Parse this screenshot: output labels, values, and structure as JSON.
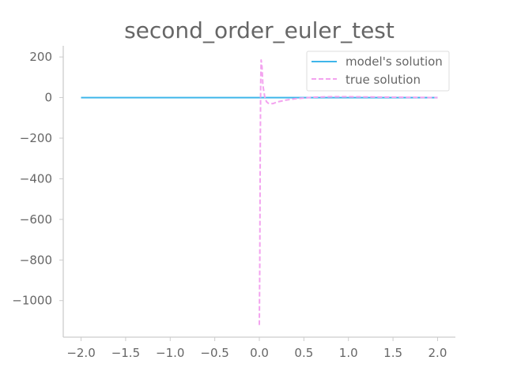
{
  "chart_data": {
    "type": "line",
    "title": "second_order_euler_test",
    "xlabel": "",
    "ylabel": "",
    "xlim": [
      -2.2,
      2.2
    ],
    "ylim": [
      -1180,
      255
    ],
    "x_ticks": [
      -2.0,
      -1.5,
      -1.0,
      -0.5,
      0.0,
      0.5,
      1.0,
      1.5,
      2.0
    ],
    "x_tick_labels": [
      "−2.0",
      "−1.5",
      "−1.0",
      "−0.5",
      "0.0",
      "0.5",
      "1.0",
      "1.5",
      "2.0"
    ],
    "y_ticks": [
      200,
      0,
      -200,
      -400,
      -600,
      -800,
      -1000
    ],
    "y_tick_labels": [
      "200",
      "0",
      "−200",
      "−400",
      "−600",
      "−800",
      "−1000"
    ],
    "grid": false,
    "legend_position": "top-right",
    "series": [
      {
        "name": "model's solution",
        "color": "#3fb6ea",
        "style": "solid",
        "x": [
          -2.0,
          -1.5,
          -1.0,
          -0.5,
          0.0,
          0.5,
          1.0,
          1.5,
          2.0
        ],
        "y": [
          0,
          0,
          0,
          0,
          0,
          0,
          0,
          0,
          0
        ]
      },
      {
        "name": "true solution",
        "color": "#f3a3ef",
        "style": "dashed",
        "x": [
          0.0,
          0.005,
          0.01,
          0.015,
          0.02,
          0.03,
          0.04,
          0.06,
          0.08,
          0.1,
          0.15,
          0.2,
          0.3,
          0.4,
          0.5,
          0.6,
          0.8,
          1.0,
          1.25,
          1.5,
          1.75,
          2.0
        ],
        "y": [
          -1120,
          -800,
          -300,
          60,
          185,
          150,
          60,
          5,
          -20,
          -28,
          -30,
          -22,
          -12,
          -6,
          -2,
          2,
          4,
          4,
          3,
          2,
          1,
          0
        ]
      }
    ]
  }
}
